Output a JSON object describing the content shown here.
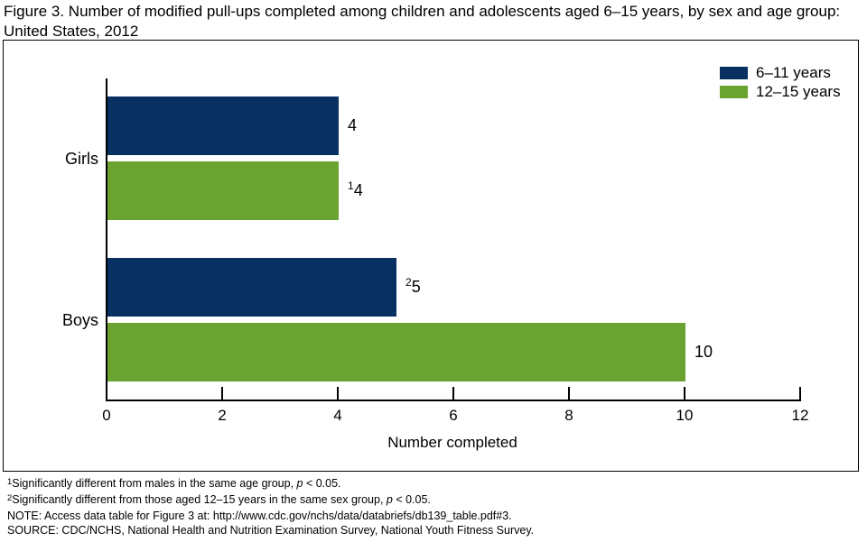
{
  "page": {
    "title": "Figure 3. Number of modified pull-ups completed among children and adolescents aged 6–15 years, by sex and age group: United States, 2012"
  },
  "chart_data": {
    "type": "bar",
    "orientation": "horizontal",
    "title": "Figure 3. Number of modified pull-ups completed among children and adolescents aged 6–15 years, by sex and age group: United States, 2012",
    "categories": [
      "Girls",
      "Boys"
    ],
    "series": [
      {
        "name": "6–11 years",
        "color": "#083161",
        "values": [
          4,
          5
        ],
        "label_sups": [
          "",
          "2"
        ]
      },
      {
        "name": "12–15 years",
        "color": "#6aa32f",
        "values": [
          4,
          10
        ],
        "label_sups": [
          "1",
          ""
        ]
      }
    ],
    "xlabel": "Number completed",
    "xlim": [
      0,
      12
    ],
    "xticks": [
      0,
      2,
      4,
      6,
      8,
      10,
      12
    ],
    "grid": false,
    "legend_position": "top-right"
  },
  "colors": {
    "navy": "#083161",
    "green": "#6aa32f",
    "axis": "#000000",
    "background": "#ffffff"
  },
  "footnotes": {
    "fn1": {
      "sup": "1",
      "body": "Significantly different from males in the same age group, ",
      "italic": "p",
      "tail": " < 0.05."
    },
    "fn2": {
      "sup": "2",
      "body": "Significantly different from those aged 12–15 years in the same sex group, ",
      "italic": "p",
      "tail": " < 0.05."
    },
    "note": "NOTE: Access data table for Figure 3 at: http://www.cdc.gov/nchs/data/databriefs/db139_table.pdf#3.",
    "source": "SOURCE: CDC/NCHS, National Health and Nutrition Examination Survey, National Youth Fitness Survey."
  }
}
